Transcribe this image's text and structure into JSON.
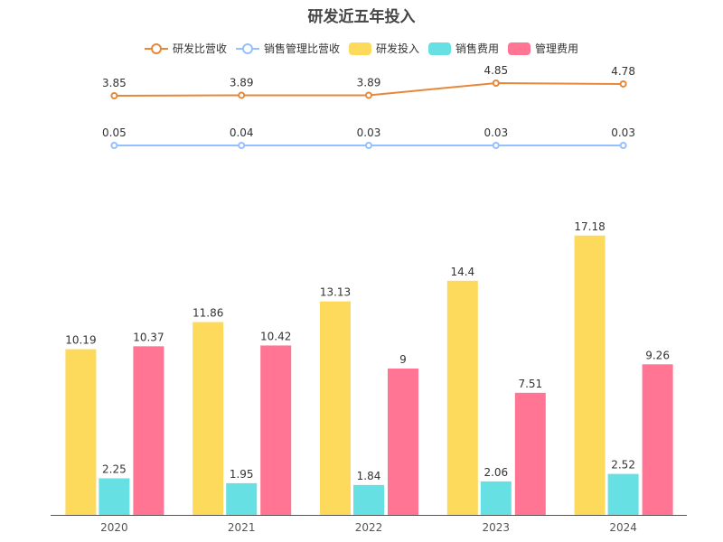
{
  "chart_data": {
    "type": "bar+line",
    "title": "研发近五年投入",
    "categories": [
      "2020",
      "2021",
      "2022",
      "2023",
      "2024"
    ],
    "legend_position": "top-center",
    "grid": false,
    "bar_series": [
      {
        "name": "研发投入",
        "color": "#FDD95C",
        "values": [
          10.19,
          11.86,
          13.13,
          14.4,
          17.18
        ],
        "labels": [
          "10.19",
          "11.86",
          "13.13",
          "14.4",
          "17.18"
        ]
      },
      {
        "name": "销售费用",
        "color": "#67E0E3",
        "values": [
          2.25,
          1.95,
          1.84,
          2.06,
          2.52
        ],
        "labels": [
          "2.25",
          "1.95",
          "1.84",
          "2.06",
          "2.52"
        ]
      },
      {
        "name": "管理费用",
        "color": "#FF7593",
        "values": [
          10.37,
          10.42,
          9,
          7.51,
          9.26
        ],
        "labels": [
          "10.37",
          "10.42",
          "9",
          "7.51",
          "9.26"
        ]
      }
    ],
    "line_series": [
      {
        "name": "研发比营收",
        "color": "#E6883A",
        "values": [
          3.85,
          3.89,
          3.89,
          4.85,
          4.78
        ],
        "labels": [
          "3.85",
          "3.89",
          "3.89",
          "4.85",
          "4.78"
        ]
      },
      {
        "name": "销售管理比营收",
        "color": "#96BFFF",
        "values": [
          0.05,
          0.04,
          0.03,
          0.03,
          0.03
        ],
        "labels": [
          "0.05",
          "0.04",
          "0.03",
          "0.03",
          "0.03"
        ]
      }
    ],
    "legend": [
      "研发比营收",
      "销售管理比营收",
      "研发投入",
      "销售费用",
      "管理费用"
    ]
  }
}
